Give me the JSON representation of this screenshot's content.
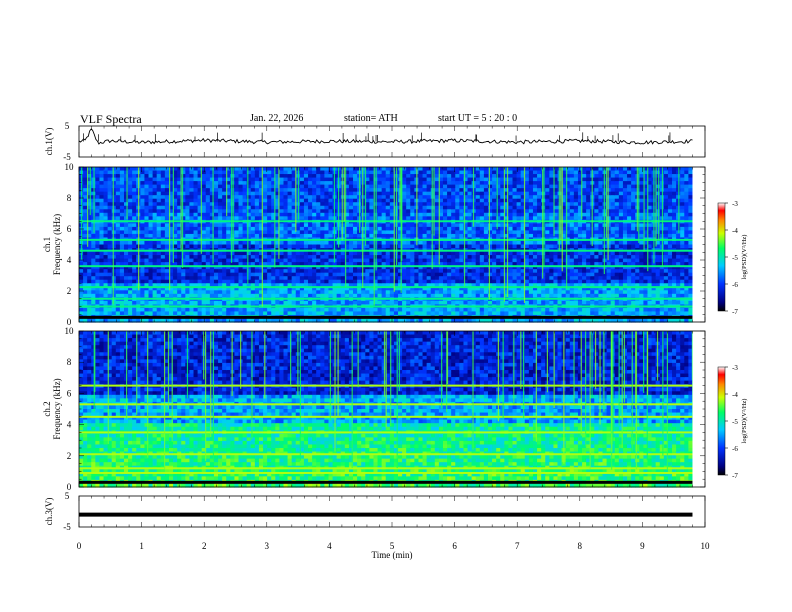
{
  "header": {
    "title": "VLF  Spectra",
    "date": "Jan. 22, 2026",
    "station": "station= ATH",
    "start_ut": "start  UT  =   5  : 20 : 0"
  },
  "chart_data": [
    {
      "type": "line",
      "panel": "ch1-waveform",
      "ylabel": "ch.1(V)",
      "ylim": [
        -5,
        5
      ],
      "yticks": [
        5,
        -5
      ],
      "xlim": [
        0,
        10
      ],
      "x": [
        0,
        0.1,
        0.2,
        0.3,
        0.5,
        1.0,
        2.0,
        3.0,
        4.0,
        5.0,
        6.0,
        7.0,
        8.0,
        9.0,
        9.8
      ],
      "values": [
        0,
        0.3,
        4.0,
        -0.5,
        0.2,
        -0.3,
        0.4,
        -0.2,
        0.1,
        -0.1,
        0.3,
        -0.2,
        0.2,
        -0.3,
        0.1
      ]
    },
    {
      "type": "heatmap",
      "panel": "ch1-spectrogram",
      "ylabel": "ch.1\nFrequency (kHz)",
      "ylim": [
        0,
        10
      ],
      "yticks": [
        0,
        2,
        4,
        6,
        8,
        10
      ],
      "xlim": [
        0,
        10
      ],
      "data_end_min": 9.8,
      "narrowband_lines_khz": [
        0.3,
        1.0,
        1.5,
        2.25,
        3.6,
        4.6,
        5.3,
        6.5
      ],
      "colorbar": {
        "label": "log(PSD)(V²/Hz)",
        "min": -7,
        "max": -3,
        "ticks": [
          -3,
          -4,
          -5,
          -6,
          -7
        ]
      }
    },
    {
      "type": "heatmap",
      "panel": "ch2-spectrogram",
      "ylabel": "ch.2\nFrequency (kHz)",
      "ylim": [
        0,
        10
      ],
      "yticks": [
        0,
        2,
        4,
        6,
        8,
        10
      ],
      "xlim": [
        0,
        10
      ],
      "data_end_min": 9.8,
      "narrowband_lines_khz": [
        0.3,
        0.9,
        1.2,
        2.1,
        3.5,
        4.5,
        5.3,
        6.5
      ],
      "colorbar": {
        "label": "log(PSD)(V²/Hz)",
        "min": -7,
        "max": -3,
        "ticks": [
          -3,
          -4,
          -5,
          -6,
          -7
        ]
      }
    },
    {
      "type": "line",
      "panel": "ch3-waveform",
      "ylabel": "ch.3(V)",
      "ylim": [
        -5,
        5
      ],
      "yticks": [
        5,
        -5
      ],
      "xlim": [
        0,
        10
      ],
      "x": [
        0,
        9.8
      ],
      "values": [
        -1,
        -1
      ]
    }
  ],
  "xaxis": {
    "label": "Time  (min)",
    "ticks": [
      "0",
      "1",
      "2",
      "3",
      "4",
      "5",
      "6",
      "7",
      "8",
      "9",
      "10"
    ]
  }
}
